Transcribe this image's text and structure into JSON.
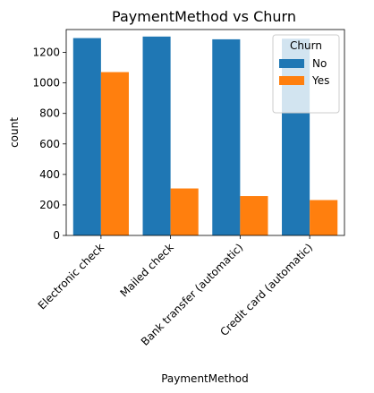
{
  "chart_data": {
    "type": "bar",
    "title": "PaymentMethod vs Churn",
    "xlabel": "PaymentMethod",
    "ylabel": "count",
    "categories": [
      "Electronic check",
      "Mailed check",
      "Bank transfer (automatic)",
      "Credit card (automatic)"
    ],
    "series": [
      {
        "name": "No",
        "values": [
          1294,
          1304,
          1286,
          1290
        ],
        "color": "#1f77b4"
      },
      {
        "name": "Yes",
        "values": [
          1071,
          308,
          258,
          232
        ],
        "color": "#ff7f0e"
      }
    ],
    "ylim": [
      0,
      1350
    ],
    "yticks": [
      0,
      200,
      400,
      600,
      800,
      1000,
      1200
    ],
    "legend": {
      "title": "Churn",
      "placement": "top-right"
    },
    "grid": false,
    "xtick_rotation": 45
  }
}
